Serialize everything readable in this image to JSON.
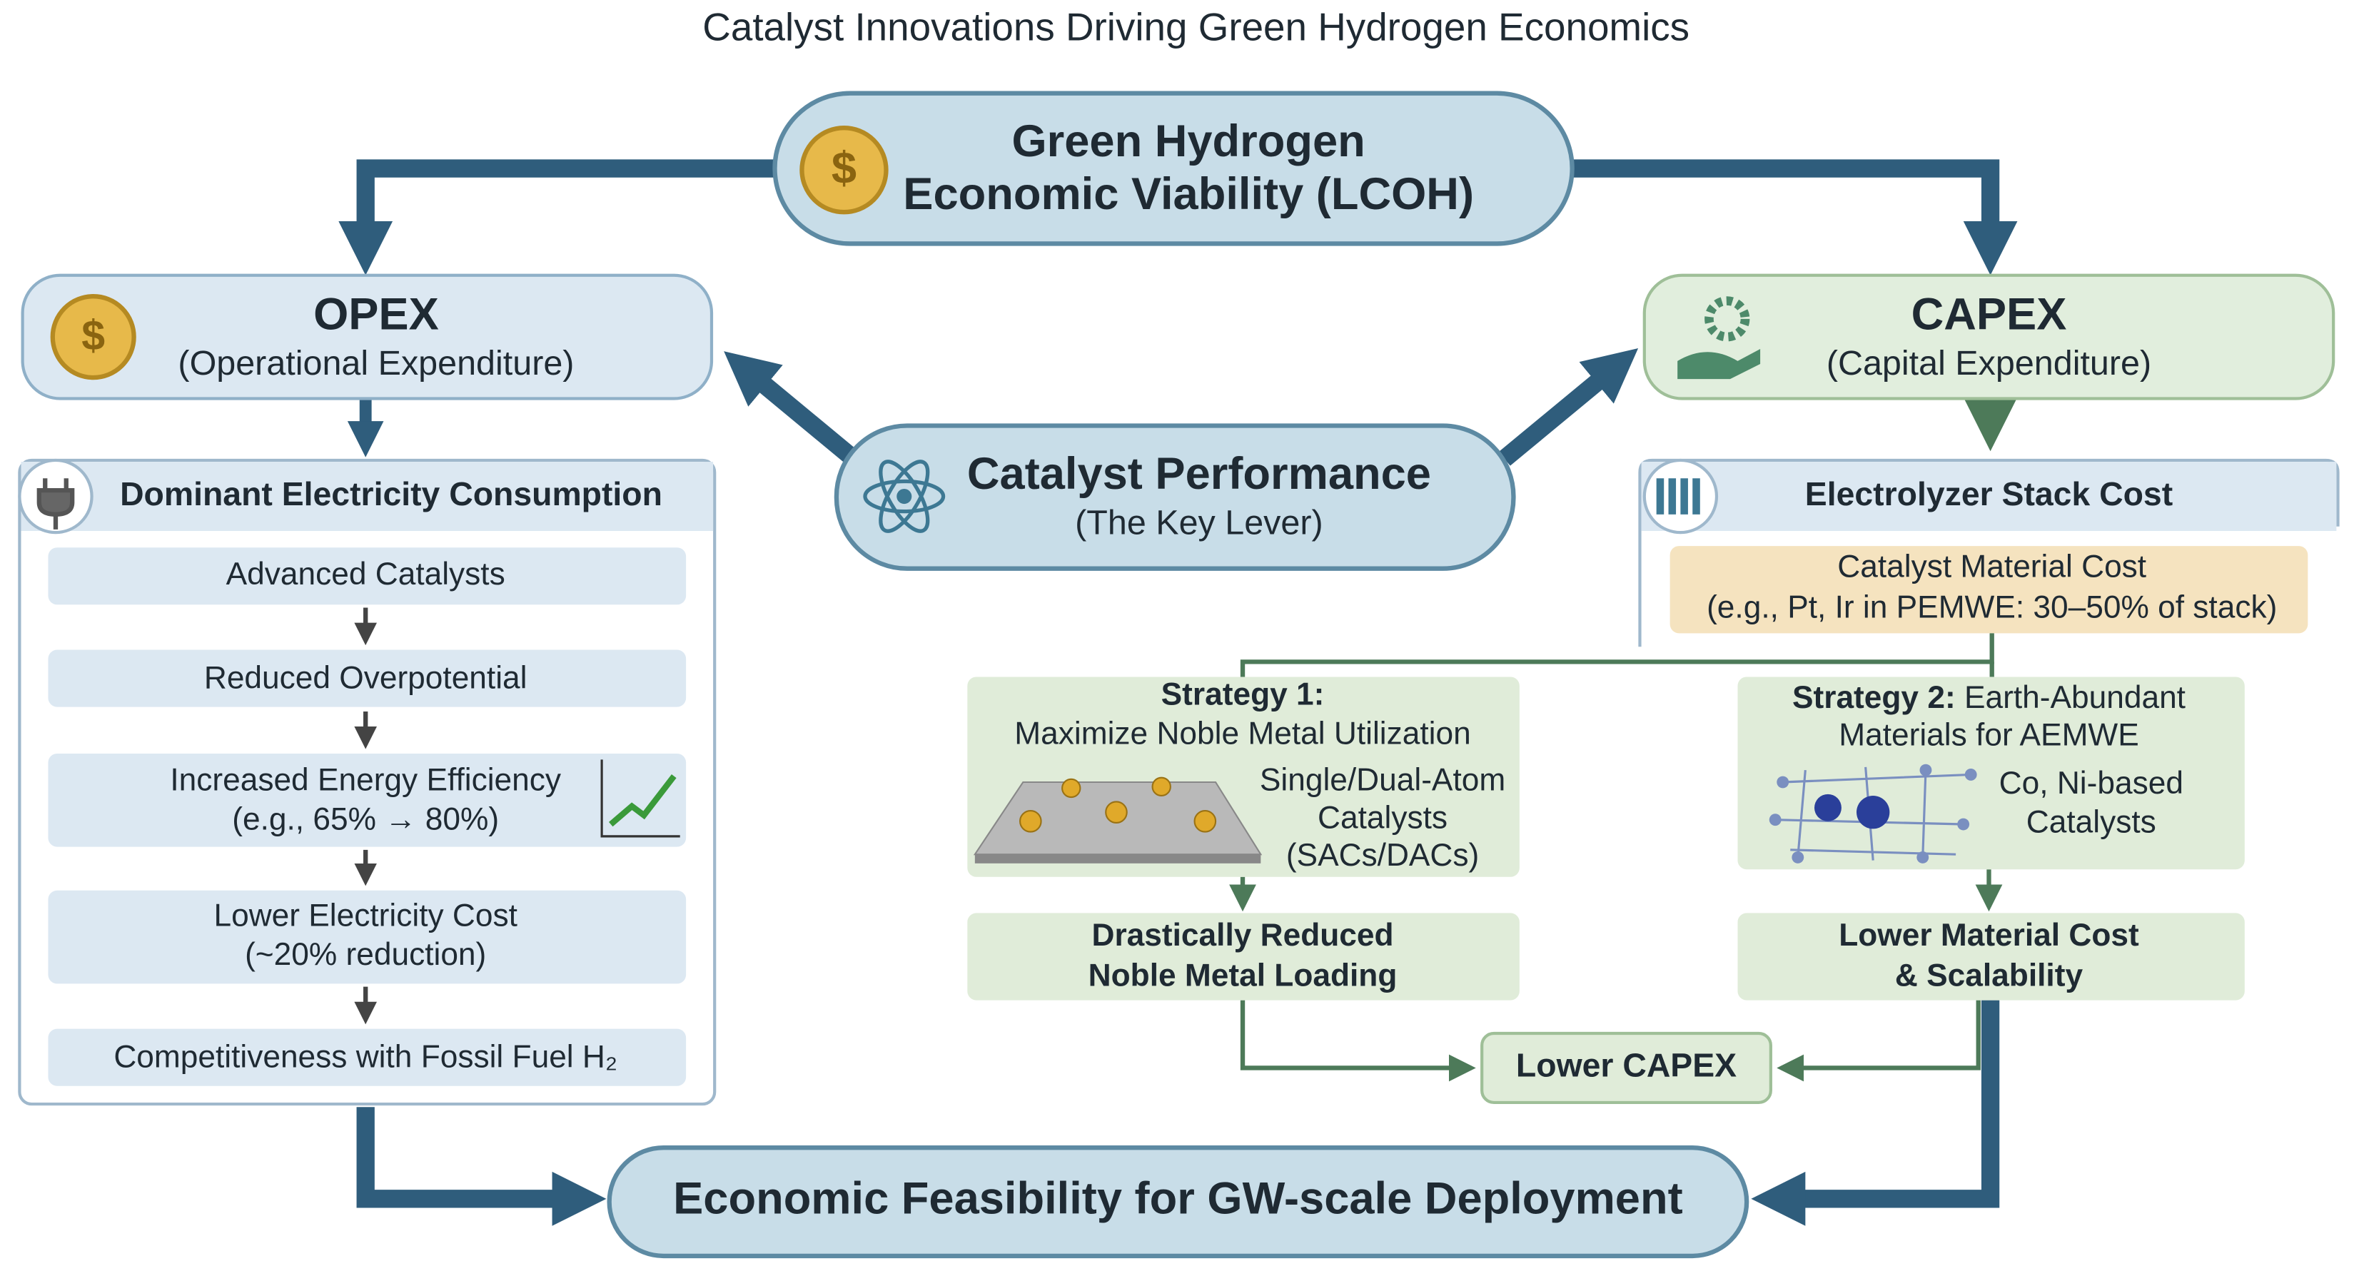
{
  "title": "Catalyst Innovations Driving Green Hydrogen Economics",
  "top": {
    "line1": "Green Hydrogen",
    "line2": "Economic Viability (LCOH)"
  },
  "opex": {
    "title": "OPEX",
    "subtitle": "(Operational Expenditure)"
  },
  "capex": {
    "title": "CAPEX",
    "subtitle": "(Capital Expenditure)"
  },
  "center": {
    "title": "Catalyst Performance",
    "subtitle": "(The Key Lever)"
  },
  "left_panel": {
    "header": "Dominant Electricity Consumption",
    "steps": [
      [
        "Advanced Catalysts"
      ],
      [
        "Reduced Overpotential"
      ],
      [
        "Increased Energy Efficiency",
        "(e.g., 65% → 80%)"
      ],
      [
        "Lower Electricity Cost",
        "(~20% reduction)"
      ],
      [
        "Competitiveness with Fossil Fuel H₂"
      ]
    ]
  },
  "right_panel": {
    "header": "Electrolyzer Stack Cost",
    "material": [
      "Catalyst Material Cost",
      "(e.g., Pt, Ir in PEMWE: 30–50% of stack)"
    ]
  },
  "strategy1": {
    "label": "Strategy 1:",
    "line": "Maximize Noble Metal Utilization",
    "catalyst": [
      "Single/Dual-Atom",
      "Catalysts",
      "(SACs/DACs)"
    ],
    "result": [
      "Drastically Reduced",
      "Noble Metal Loading"
    ]
  },
  "strategy2": {
    "label": "Strategy 2:",
    "line1": "Earth-Abundant",
    "line2": "Materials for AEMWE",
    "catalyst": [
      "Co, Ni-based",
      "Catalysts"
    ],
    "result": [
      "Lower Material Cost",
      "& Scalability"
    ]
  },
  "lower_capex": "Lower CAPEX",
  "bottom": "Economic Feasibility for GW-scale Deployment"
}
